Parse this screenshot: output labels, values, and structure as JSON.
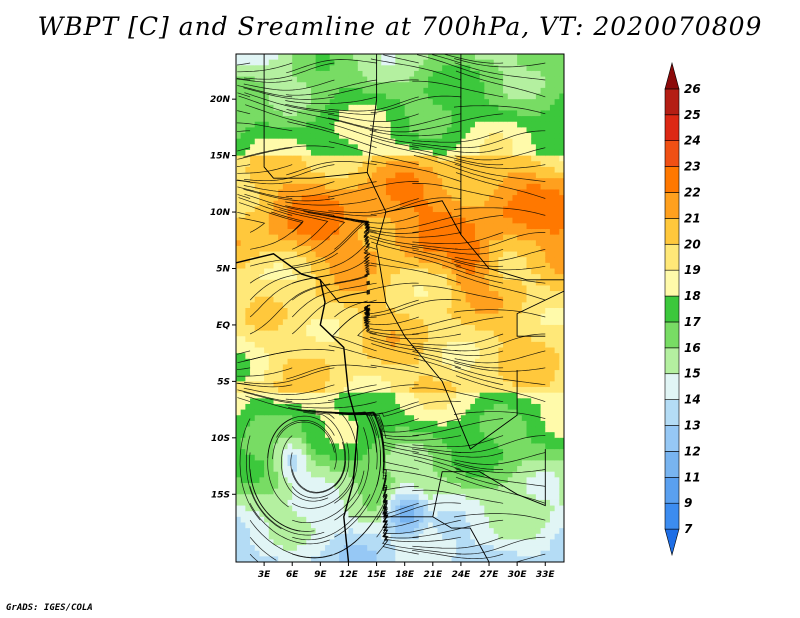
{
  "chart_data": {
    "type": "heatmap",
    "title": "WBPT [C] and Sreamline at 700hPa, VT: 2020070809",
    "variable": "WBPT [C]",
    "overlay": "Streamline",
    "level": "700hPa",
    "valid_time": "2020070809",
    "xlim": [
      0,
      35
    ],
    "ylim": [
      -21,
      24
    ],
    "x_ticks": [
      3,
      6,
      9,
      12,
      15,
      18,
      21,
      24,
      27,
      30,
      33
    ],
    "x_tick_labels": [
      "3E",
      "6E",
      "9E",
      "12E",
      "15E",
      "18E",
      "21E",
      "24E",
      "27E",
      "30E",
      "33E"
    ],
    "y_ticks": [
      20,
      15,
      10,
      5,
      0,
      -5,
      -10,
      -15
    ],
    "y_tick_labels": [
      "20N",
      "15N",
      "10N",
      "5N",
      "EQ",
      "5S",
      "10S",
      "15S"
    ],
    "colorbar": {
      "levels": [
        "7",
        "9",
        "11",
        "12",
        "13",
        "14",
        "15",
        "16",
        "17",
        "18",
        "19",
        "20",
        "21",
        "22",
        "23",
        "24",
        "25",
        "26"
      ],
      "colors": [
        "#1e6ee6",
        "#3c8cf0",
        "#5aa0f0",
        "#78b4f0",
        "#96c8f5",
        "#b4dcf5",
        "#e1f5f5",
        "#b4f0a0",
        "#78dc64",
        "#3cc83c",
        "#fffaaa",
        "#ffe878",
        "#ffc83c",
        "#ffa01e",
        "#ff7800",
        "#f05014",
        "#dc2814",
        "#b41e14",
        "#8c0a0a"
      ]
    }
  },
  "footer": "GrADS: IGES/COLA"
}
